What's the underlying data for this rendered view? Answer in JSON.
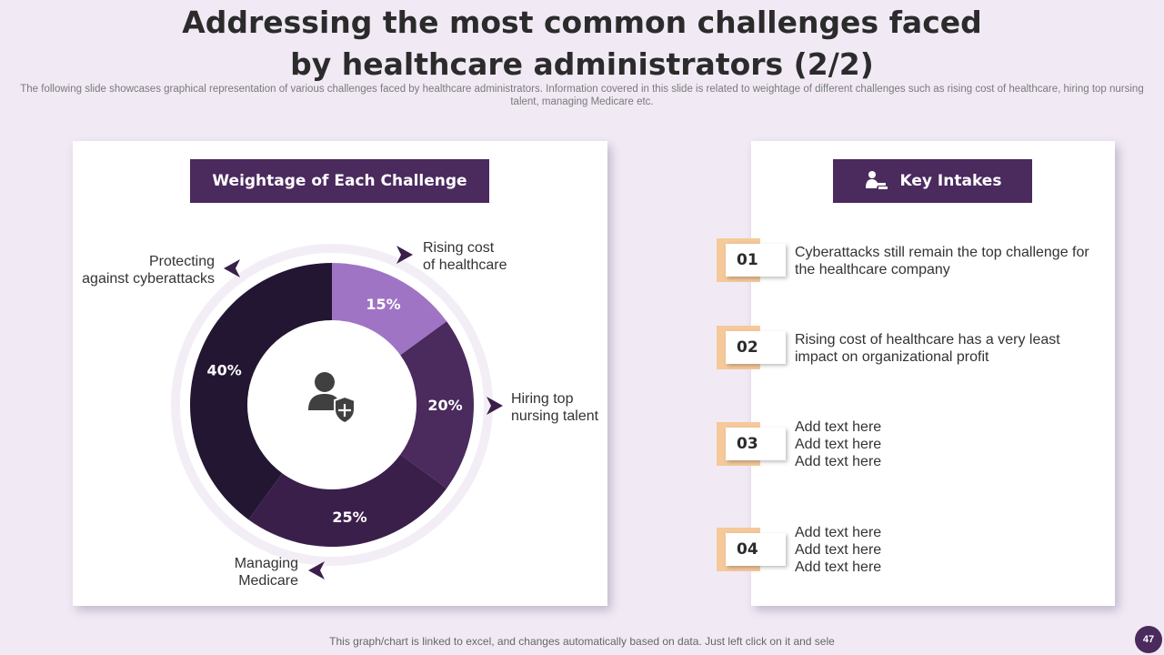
{
  "slide": {
    "title_line1": "Addressing the most common challenges faced",
    "title_line2": "by healthcare administrators (2/2)",
    "subtitle": "The following slide showcases graphical representation of various challenges faced by healthcare administrators. Information covered in this slide is related to weightage of different challenges such as rising cost of healthcare, hiring top nursing talent, managing Medicare etc.",
    "footer": "This graph/chart is linked to excel, and changes automatically based on data. Just left click on it and sele",
    "page_number": "47"
  },
  "left_panel": {
    "header": "Weightage of Each Challenge",
    "center_icon": "healthcare-user-shield-icon"
  },
  "right_panel": {
    "header": "Key Intakes",
    "header_icon": "worker-icon"
  },
  "chart_data": {
    "type": "pie",
    "variant": "donut",
    "title": "Weightage of Each Challenge",
    "categories": [
      "Rising cost of healthcare",
      "Hiring top nursing talent",
      "Managing Medicare",
      "Protecting against cyberattacks"
    ],
    "category_lines": [
      [
        "Rising cost",
        "of healthcare"
      ],
      [
        "Hiring top",
        "nursing talent"
      ],
      [
        "Managing",
        "Medicare"
      ],
      [
        "Protecting",
        "against cyberattacks"
      ]
    ],
    "values": [
      15,
      20,
      25,
      40
    ],
    "data_labels": [
      "15%",
      "20%",
      "25%",
      "40%"
    ],
    "colors": [
      "#a074c4",
      "#4b2a5e",
      "#3a1f4b",
      "#231632"
    ],
    "unit": "%"
  },
  "intakes": [
    {
      "num": "01",
      "lines": [
        "Cyberattacks still remain the top challenge for",
        "the healthcare company"
      ]
    },
    {
      "num": "02",
      "lines": [
        "Rising cost of healthcare has a very least",
        "impact on organizational profit"
      ]
    },
    {
      "num": "03",
      "lines": [
        "Add text here",
        "Add text here",
        "Add text here"
      ]
    },
    {
      "num": "04",
      "lines": [
        "Add text here",
        "Add text here",
        "Add text here"
      ]
    }
  ],
  "colors": {
    "accent": "#4b2a5e",
    "number_tab": "#f5c99a",
    "background": "#f1eaf5"
  }
}
